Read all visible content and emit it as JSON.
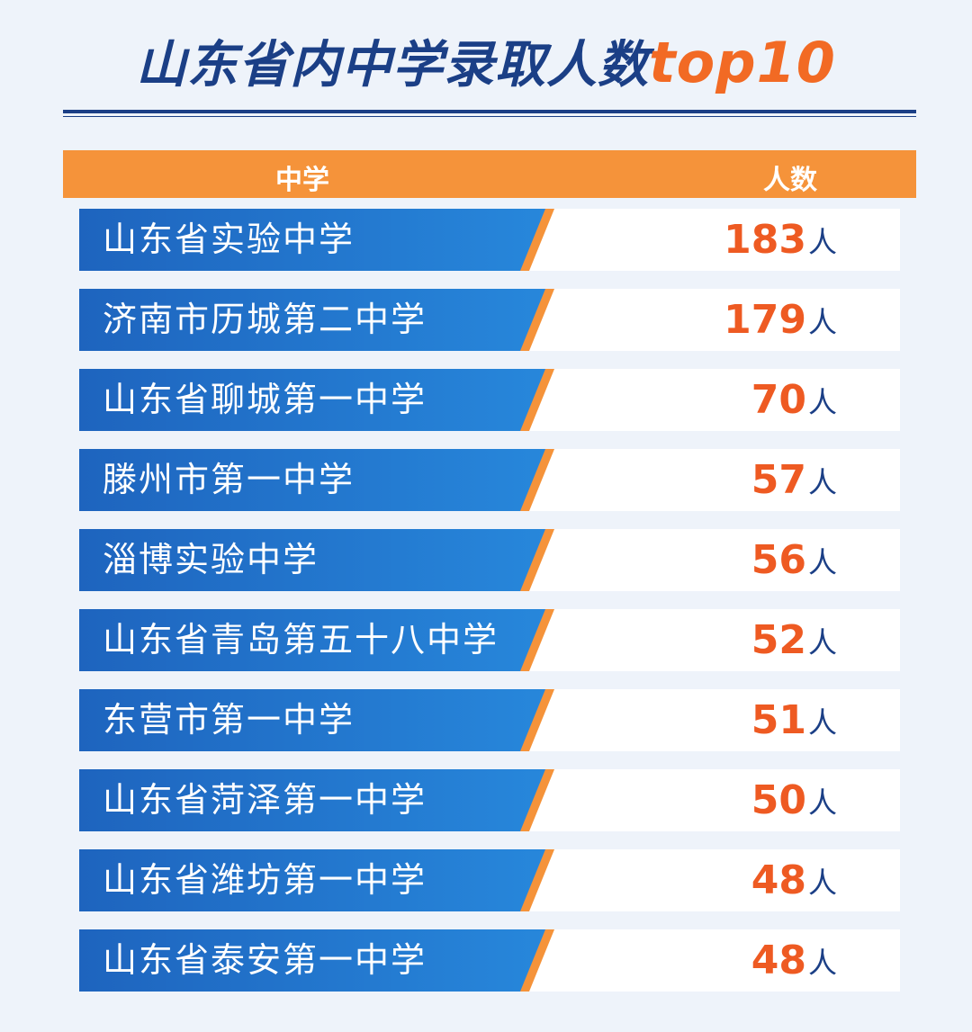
{
  "page": {
    "title_main": "山东省内中学录取人数",
    "title_accent": "top10"
  },
  "table": {
    "header_school": "中学",
    "header_count": "人数",
    "unit": "人"
  },
  "chart_data": {
    "type": "table",
    "columns": [
      "中学",
      "人数"
    ],
    "rows": [
      {
        "school": "山东省实验中学",
        "count": 183
      },
      {
        "school": "济南市历城第二中学",
        "count": 179
      },
      {
        "school": "山东省聊城第一中学",
        "count": 70
      },
      {
        "school": "滕州市第一中学",
        "count": 57
      },
      {
        "school": "淄博实验中学",
        "count": 56
      },
      {
        "school": "山东省青岛第五十八中学",
        "count": 52
      },
      {
        "school": "东营市第一中学",
        "count": 51
      },
      {
        "school": "山东省菏泽第一中学",
        "count": 50
      },
      {
        "school": "山东省潍坊第一中学",
        "count": 48
      },
      {
        "school": "山东省泰安第一中学",
        "count": 48
      }
    ]
  },
  "colors": {
    "navy": "#1b3f86",
    "orange": "#f5933a",
    "number_orange": "#ee5a22",
    "row_blue": "#1e64be"
  }
}
